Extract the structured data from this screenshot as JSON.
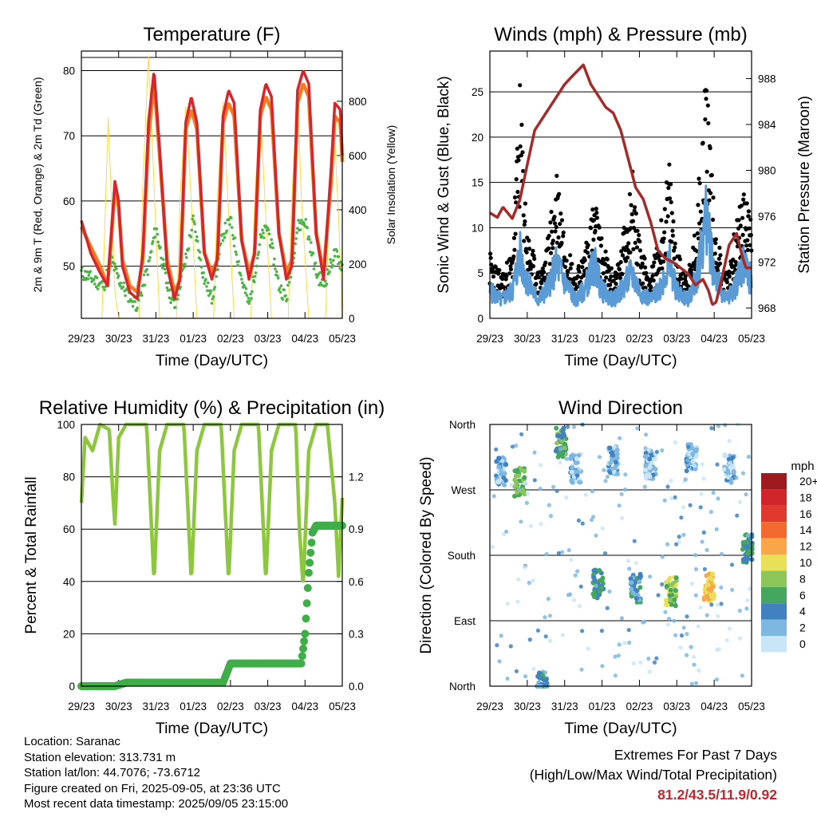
{
  "chart_data": [
    {
      "type": "line",
      "title": "Temperature (F)",
      "xlabel": "Time (Day/UTC)",
      "ylabel": "2m & 9m T (Red, Orange) & 2m Td (Green)",
      "y2label": "Solar Insolation (Yellow)",
      "xticks": [
        "29/23",
        "30/23",
        "31/23",
        "01/23",
        "02/23",
        "03/23",
        "04/23",
        "05/23"
      ],
      "ylim": [
        42,
        83
      ],
      "yticks": [
        50,
        60,
        70,
        80
      ],
      "y2lim": [
        0,
        985
      ],
      "y2ticks": [
        0,
        200,
        400,
        600,
        800
      ],
      "colors": {
        "t2m": "#d7262b",
        "t9m": "#f47b20",
        "td2m": "#4ab545",
        "solar": "#ffd93f"
      },
      "series": [
        {
          "name": "2m T",
          "x": [
            0,
            0.25,
            0.5,
            0.7,
            0.8,
            0.9,
            1.0,
            1.1,
            1.3,
            1.5,
            1.65,
            1.8,
            1.95,
            2.1,
            2.3,
            2.5,
            2.65,
            2.8,
            2.95,
            3.1,
            3.3,
            3.5,
            3.65,
            3.8,
            3.95,
            4.1,
            4.3,
            4.5,
            4.65,
            4.8,
            4.95,
            5.1,
            5.3,
            5.5,
            5.65,
            5.8,
            5.95,
            6.1,
            6.3,
            6.5,
            6.7,
            6.8,
            6.95,
            7.0
          ],
          "values": [
            57,
            52,
            49,
            47,
            55,
            63,
            60,
            50,
            46,
            45,
            52,
            72,
            80,
            68,
            50,
            45,
            48,
            72,
            76,
            72,
            52,
            48,
            51,
            73,
            77,
            75,
            54,
            48,
            52,
            74,
            78,
            76,
            55,
            48,
            50,
            77,
            80,
            78,
            55,
            48,
            65,
            75,
            74,
            67
          ]
        },
        {
          "name": "9m T",
          "x": [
            0,
            0.25,
            0.5,
            0.7,
            0.8,
            0.9,
            1.0,
            1.1,
            1.3,
            1.5,
            1.65,
            1.8,
            1.95,
            2.1,
            2.3,
            2.5,
            2.65,
            2.8,
            2.95,
            3.1,
            3.3,
            3.5,
            3.65,
            3.8,
            3.95,
            4.1,
            4.3,
            4.5,
            4.65,
            4.8,
            4.95,
            5.1,
            5.3,
            5.5,
            5.65,
            5.8,
            5.95,
            6.1,
            6.3,
            6.5,
            6.7,
            6.8,
            6.95,
            7.0
          ],
          "values": [
            56,
            53,
            50,
            47,
            54,
            62,
            59,
            51,
            47,
            46,
            51,
            70,
            78,
            67,
            51,
            46,
            48,
            71,
            74,
            71,
            52,
            49,
            51,
            72,
            75,
            73,
            54,
            49,
            52,
            73,
            76,
            74,
            55,
            49,
            51,
            75,
            78,
            76,
            55,
            49,
            63,
            73,
            72,
            66
          ]
        },
        {
          "name": "2m Td",
          "x": [
            0,
            0.3,
            0.6,
            0.8,
            1.0,
            1.2,
            1.5,
            1.8,
            2.0,
            2.3,
            2.5,
            2.8,
            3.0,
            3.3,
            3.5,
            3.8,
            4.0,
            4.3,
            4.5,
            4.8,
            5.0,
            5.3,
            5.5,
            5.8,
            6.0,
            6.3,
            6.5,
            6.8,
            7.0
          ],
          "values": [
            49,
            48,
            47,
            51,
            48,
            46,
            44,
            50,
            56,
            47,
            44,
            51,
            57,
            48,
            45,
            55,
            57,
            48,
            44,
            54,
            56,
            47,
            45,
            56,
            57,
            49,
            47,
            52,
            50
          ]
        },
        {
          "name": "Solar",
          "x": [
            0,
            0.55,
            0.62,
            0.72,
            0.9,
            1.0,
            1.55,
            1.65,
            1.8,
            1.9,
            2.1,
            2.55,
            2.65,
            2.8,
            2.9,
            3.1,
            3.55,
            3.65,
            3.8,
            3.9,
            4.1,
            4.55,
            4.65,
            4.8,
            4.9,
            5.1,
            5.55,
            5.65,
            5.8,
            5.9,
            6.1,
            6.55,
            6.65,
            6.8,
            6.9,
            7.0
          ],
          "values": [
            0,
            0,
            300,
            740,
            100,
            0,
            0,
            500,
            970,
            650,
            0,
            0,
            450,
            780,
            560,
            0,
            0,
            450,
            800,
            520,
            0,
            0,
            440,
            780,
            500,
            0,
            0,
            450,
            840,
            450,
            0,
            0,
            400,
            650,
            380,
            0
          ]
        }
      ]
    },
    {
      "type": "scatter",
      "title": "Winds (mph) & Pressure (mb)",
      "xlabel": "Time (Day/UTC)",
      "ylabel": "Sonic Wind & Gust (Blue, Black)",
      "y2label": "Station Pressure (Maroon)",
      "xticks": [
        "29/23",
        "30/23",
        "31/23",
        "01/23",
        "02/23",
        "03/23",
        "04/23",
        "05/23"
      ],
      "ylim": [
        0,
        29.5
      ],
      "yticks": [
        0,
        5,
        10,
        15,
        20,
        25
      ],
      "y2lim": [
        967.1,
        990.4
      ],
      "y2ticks": [
        968,
        972,
        976,
        980,
        984,
        988
      ],
      "colors": {
        "wind": "#5b9bd5",
        "gust": "#000000",
        "pressure": "#a52a2a"
      },
      "series": [
        {
          "name": "Pressure",
          "x": [
            0,
            0.2,
            0.35,
            0.6,
            0.8,
            1.0,
            1.2,
            1.5,
            1.8,
            2.0,
            2.2,
            2.5,
            2.7,
            2.9,
            3.1,
            3.3,
            3.5,
            3.7,
            3.9,
            4.1,
            4.3,
            4.5,
            4.7,
            4.9,
            5.1,
            5.3,
            5.5,
            5.7,
            5.85,
            5.95,
            6.05,
            6.2,
            6.4,
            6.6,
            6.75,
            6.85,
            7.0
          ],
          "values": [
            976.3,
            975.9,
            976.8,
            975.8,
            977.4,
            980.5,
            983.5,
            985.0,
            986.5,
            987.5,
            988.2,
            989.2,
            987.5,
            986.5,
            985.5,
            985.0,
            983.5,
            981.0,
            978.5,
            977.5,
            975.5,
            973.0,
            972.3,
            972.0,
            971.5,
            971.0,
            970.0,
            970.5,
            969.5,
            968.3,
            968.5,
            970.5,
            973.5,
            974.5,
            972.5,
            971.5,
            971.5
          ]
        },
        {
          "name": "Wind",
          "x": [
            0,
            0.3,
            0.6,
            0.8,
            1.0,
            1.3,
            1.5,
            1.8,
            2.0,
            2.3,
            2.5,
            2.8,
            3.0,
            3.3,
            3.5,
            3.8,
            4.0,
            4.3,
            4.5,
            4.8,
            5.0,
            5.3,
            5.5,
            5.8,
            6.0,
            6.3,
            6.5,
            6.8,
            7.0
          ],
          "values": [
            3,
            2,
            3,
            7,
            4,
            2,
            3,
            6,
            4,
            2,
            3,
            6,
            3,
            2,
            3,
            5,
            3,
            2,
            3,
            6,
            3,
            2,
            4,
            11,
            5,
            2,
            3,
            6,
            4
          ]
        },
        {
          "name": "Gust",
          "x": [
            0,
            0.3,
            0.6,
            0.8,
            1.0,
            1.3,
            1.5,
            1.8,
            2.0,
            2.3,
            2.5,
            2.8,
            3.0,
            3.3,
            3.5,
            3.8,
            4.0,
            4.3,
            4.5,
            4.8,
            5.0,
            5.3,
            5.5,
            5.8,
            6.0,
            6.3,
            6.5,
            6.8,
            7.0
          ],
          "values": [
            6,
            4,
            6,
            21,
            8,
            4,
            6,
            14,
            8,
            4,
            6,
            11,
            7,
            4,
            6,
            14,
            7,
            4,
            7,
            14,
            6,
            4,
            8,
            24,
            9,
            4,
            7,
            12,
            9
          ]
        }
      ]
    },
    {
      "type": "line",
      "title": "Relative Humidity (%) & Precipitation (in)",
      "xlabel": "Time (Day/UTC)",
      "ylabel": "Percent & Total Rainfall",
      "xticks": [
        "29/23",
        "30/23",
        "31/23",
        "01/23",
        "02/23",
        "03/23",
        "04/23",
        "05/23"
      ],
      "ylim": [
        0,
        100
      ],
      "yticks": [
        0,
        20,
        40,
        60,
        80,
        100
      ],
      "y2lim": [
        0,
        1.5
      ],
      "y2ticks": [
        "0.0",
        "0.3",
        "0.6",
        "0.9",
        "1.2"
      ],
      "colors": {
        "rh": "#8dc63f",
        "precip": "#3fae49"
      },
      "series": [
        {
          "name": "RH",
          "x": [
            0,
            0.1,
            0.3,
            0.5,
            0.75,
            0.85,
            0.9,
            1.0,
            1.2,
            1.5,
            1.75,
            1.85,
            1.95,
            2.1,
            2.3,
            2.5,
            2.75,
            2.85,
            2.95,
            3.1,
            3.3,
            3.5,
            3.75,
            3.85,
            3.95,
            4.1,
            4.3,
            4.5,
            4.75,
            4.85,
            4.95,
            5.1,
            5.3,
            5.5,
            5.75,
            5.85,
            5.95,
            6.1,
            6.3,
            6.6,
            6.8,
            6.9,
            7.0
          ],
          "values": [
            70,
            95,
            90,
            100,
            98,
            72,
            62,
            95,
            100,
            100,
            100,
            70,
            40,
            90,
            100,
            100,
            100,
            70,
            40,
            90,
            100,
            100,
            100,
            70,
            40,
            90,
            100,
            100,
            100,
            70,
            40,
            90,
            100,
            100,
            100,
            60,
            38,
            90,
            100,
            100,
            70,
            42,
            72
          ]
        },
        {
          "name": "Precip",
          "x": [
            0,
            0.9,
            1.2,
            2.0,
            3.4,
            3.8,
            4.0,
            4.5,
            4.9,
            5.4,
            5.9,
            6.0,
            6.1,
            6.2,
            6.3,
            6.5,
            7.0
          ],
          "values": [
            0,
            0,
            0.02,
            0.02,
            0.02,
            0.02,
            0.13,
            0.13,
            0.13,
            0.13,
            0.13,
            0.3,
            0.65,
            0.88,
            0.92,
            0.92,
            0.92
          ]
        }
      ]
    },
    {
      "type": "scatter",
      "title": "Wind Direction",
      "xlabel": "Time (Day/UTC)",
      "ylabel": "Direction (Colored By Speed)",
      "xticks": [
        "29/23",
        "30/23",
        "31/23",
        "01/23",
        "02/23",
        "03/23",
        "04/23",
        "05/23"
      ],
      "ylim": [
        0,
        360
      ],
      "ytick_labels": [
        "North",
        "East",
        "South",
        "West",
        "North"
      ],
      "yticks": [
        0,
        90,
        180,
        270,
        360
      ],
      "legend_title": "mph",
      "legend_labels": [
        "20+",
        "18",
        "16",
        "14",
        "12",
        "10",
        "8",
        "6",
        "4",
        "2",
        "0"
      ],
      "legend_colors": [
        "#9e1a1e",
        "#d0252a",
        "#e03a2f",
        "#f26a2e",
        "#f9a64a",
        "#e8e056",
        "#8cc55a",
        "#45a65d",
        "#3f81c1",
        "#7eb8e2",
        "#c8e6f7"
      ],
      "clusters": [
        {
          "x": 0.3,
          "dir": 295,
          "speed": 2
        },
        {
          "x": 0.8,
          "dir": 280,
          "speed": 7
        },
        {
          "x": 1.4,
          "dir": 0,
          "speed": 4
        },
        {
          "x": 1.9,
          "dir": 335,
          "speed": 6
        },
        {
          "x": 2.3,
          "dir": 300,
          "speed": 2
        },
        {
          "x": 2.9,
          "dir": 140,
          "speed": 5
        },
        {
          "x": 3.3,
          "dir": 310,
          "speed": 2
        },
        {
          "x": 3.9,
          "dir": 135,
          "speed": 4
        },
        {
          "x": 4.3,
          "dir": 305,
          "speed": 2
        },
        {
          "x": 4.85,
          "dir": 130,
          "speed": 8
        },
        {
          "x": 5.4,
          "dir": 315,
          "speed": 2
        },
        {
          "x": 5.85,
          "dir": 135,
          "speed": 11
        },
        {
          "x": 6.4,
          "dir": 300,
          "speed": 2
        },
        {
          "x": 6.9,
          "dir": 190,
          "speed": 5
        }
      ]
    }
  ],
  "footer": {
    "location": "Location: Saranac",
    "elevation": "Station elevation: 313.731 m",
    "latlon": "Station lat/lon: 44.7076; -73.6712",
    "created": "Figure created on Fri, 2025-09-05, at 23:36 UTC",
    "recent": "Most recent data timestamp: 2025/09/05 23:15:00"
  },
  "extremes": {
    "title": "Extremes For Past 7 Days",
    "subtitle": "(High/Low/Max Wind/Total Precipitation)",
    "values": "81.2/43.5/11.9/0.92"
  }
}
